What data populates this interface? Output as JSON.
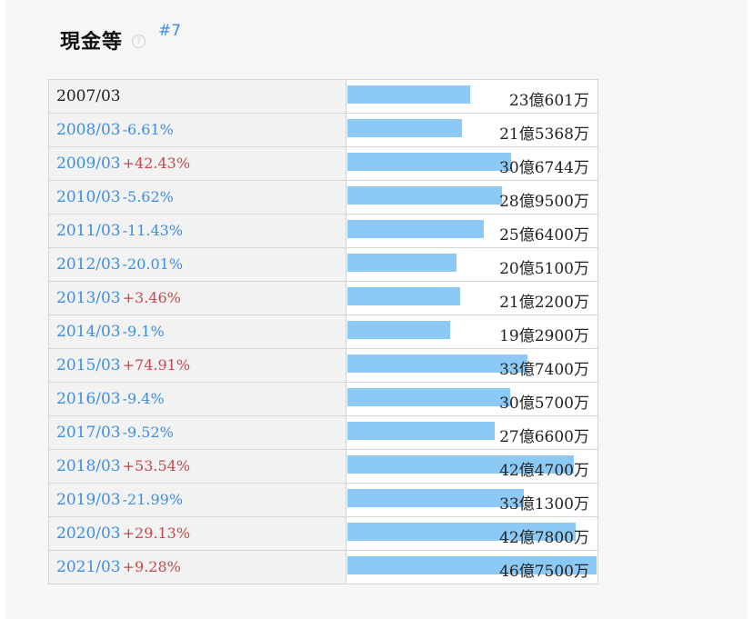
{
  "header": {
    "title": "現金等",
    "help_icon": "?",
    "rank": "#7"
  },
  "chart_data": {
    "type": "bar",
    "unit": "万円",
    "rows": [
      {
        "year": "2007/03",
        "change": "",
        "value_label": "23億601万",
        "value": 230601
      },
      {
        "year": "2008/03",
        "change": "-6.61%",
        "value_label": "21億5368万",
        "value": 215368
      },
      {
        "year": "2009/03",
        "change": "+42.43%",
        "value_label": "30億6744万",
        "value": 306744
      },
      {
        "year": "2010/03",
        "change": "-5.62%",
        "value_label": "28億9500万",
        "value": 289500
      },
      {
        "year": "2011/03",
        "change": "-11.43%",
        "value_label": "25億6400万",
        "value": 256400
      },
      {
        "year": "2012/03",
        "change": "-20.01%",
        "value_label": "20億5100万",
        "value": 205100
      },
      {
        "year": "2013/03",
        "change": "+3.46%",
        "value_label": "21億2200万",
        "value": 212200
      },
      {
        "year": "2014/03",
        "change": "-9.1%",
        "value_label": "19億2900万",
        "value": 192900
      },
      {
        "year": "2015/03",
        "change": "+74.91%",
        "value_label": "33億7400万",
        "value": 337400
      },
      {
        "year": "2016/03",
        "change": "-9.4%",
        "value_label": "30億5700万",
        "value": 305700
      },
      {
        "year": "2017/03",
        "change": "-9.52%",
        "value_label": "27億6600万",
        "value": 276600
      },
      {
        "year": "2018/03",
        "change": "+53.54%",
        "value_label": "42億4700万",
        "value": 424700
      },
      {
        "year": "2019/03",
        "change": "-21.99%",
        "value_label": "33億1300万",
        "value": 331300
      },
      {
        "year": "2020/03",
        "change": "+29.13%",
        "value_label": "42億7800万",
        "value": 427800
      },
      {
        "year": "2021/03",
        "change": "+9.28%",
        "value_label": "46億7500万",
        "value": 467500
      }
    ],
    "colors": {
      "bar": "#8ccaf5",
      "negative_change": "#3a8ee6",
      "positive_change": "#c9474b",
      "link": "#3a8ee6"
    }
  }
}
